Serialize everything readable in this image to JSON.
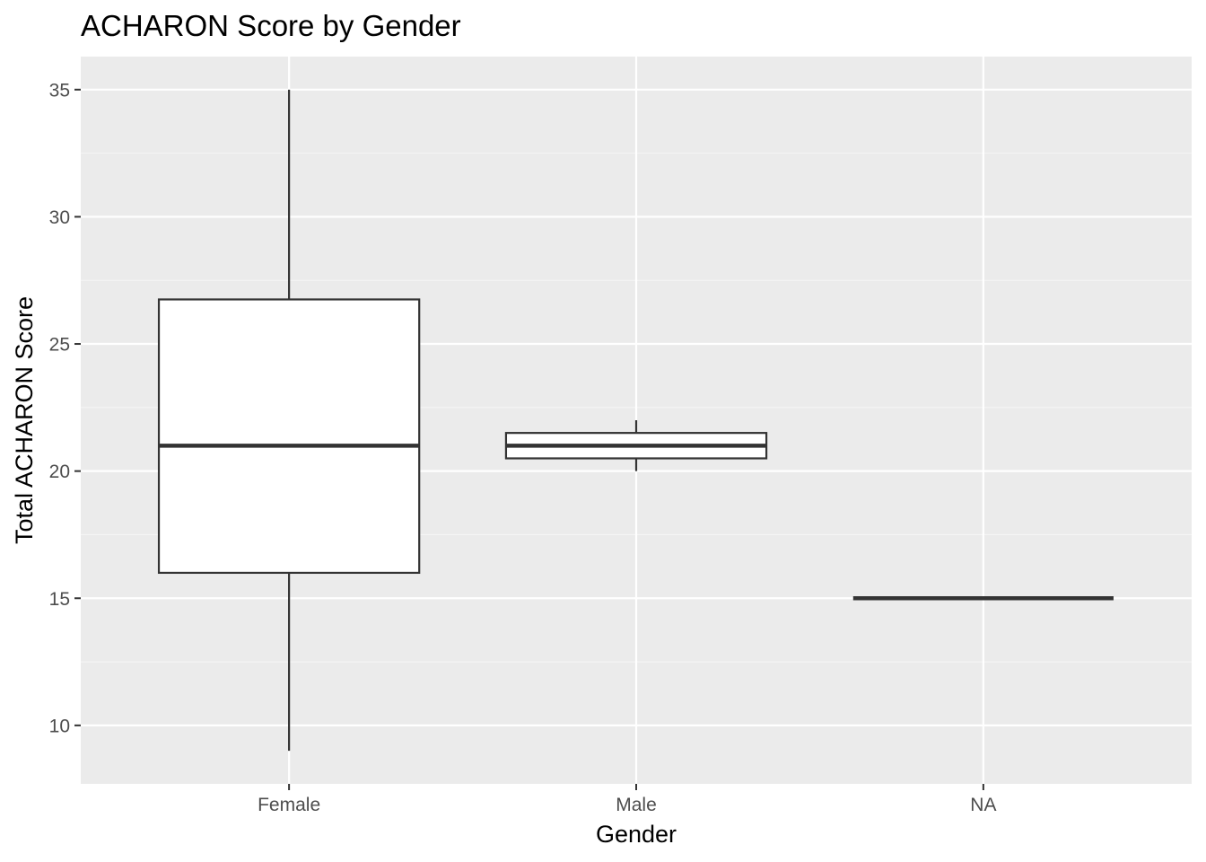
{
  "chart_data": {
    "type": "boxplot",
    "title": "ACHARON Score by Gender",
    "xlabel": "Gender",
    "ylabel": "Total ACHARON Score",
    "categories": [
      "Female",
      "Male",
      "NA"
    ],
    "boxes": [
      {
        "category": "Female",
        "min": 9,
        "q1": 16,
        "median": 21,
        "q3": 26.75,
        "max": 35
      },
      {
        "category": "Male",
        "min": 20,
        "q1": 20.5,
        "median": 21,
        "q3": 21.5,
        "max": 22
      },
      {
        "category": "NA",
        "min": 15,
        "q1": 15,
        "median": 15,
        "q3": 15,
        "max": 15
      }
    ],
    "ylim": [
      7.7,
      36.3
    ],
    "yticks": [
      10,
      15,
      20,
      25,
      30,
      35
    ],
    "grid": true,
    "legend": "none",
    "colors": {
      "panel_background": "#ebebeb",
      "grid_major": "#ffffff",
      "grid_minor": "#f5f5f5",
      "box_fill": "#ffffff",
      "box_stroke": "#333333",
      "tick_text": "#4d4d4d",
      "tick_mark": "#333333",
      "title_text": "#000000"
    }
  }
}
